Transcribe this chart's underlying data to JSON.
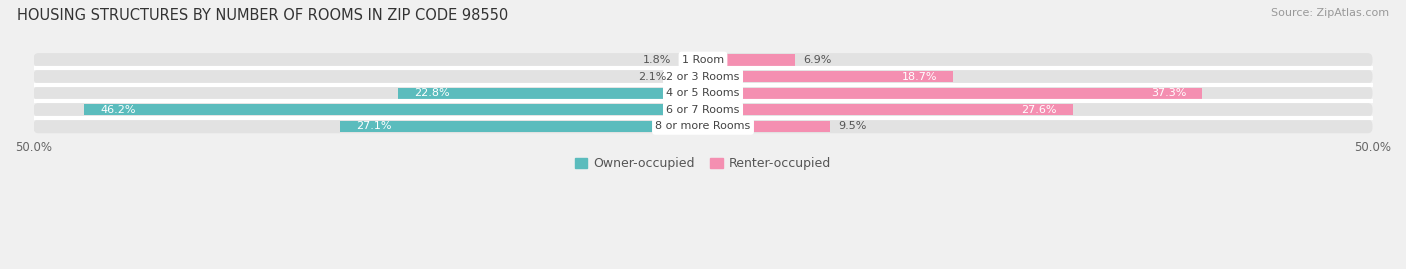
{
  "title": "HOUSING STRUCTURES BY NUMBER OF ROOMS IN ZIP CODE 98550",
  "source": "Source: ZipAtlas.com",
  "categories": [
    "1 Room",
    "2 or 3 Rooms",
    "4 or 5 Rooms",
    "6 or 7 Rooms",
    "8 or more Rooms"
  ],
  "owner_values": [
    1.8,
    2.1,
    22.8,
    46.2,
    27.1
  ],
  "renter_values": [
    6.9,
    18.7,
    37.3,
    27.6,
    9.5
  ],
  "owner_color": "#5bbcbd",
  "renter_color": "#f48fb1",
  "owner_label_threshold": 5,
  "renter_label_threshold": 12,
  "background_color": "#f0f0f0",
  "bar_bg_color": "#e2e2e2",
  "xlim": [
    -50,
    50
  ],
  "title_fontsize": 10.5,
  "source_fontsize": 8,
  "label_fontsize": 8,
  "category_fontsize": 8,
  "legend_fontsize": 9,
  "figsize": [
    14.06,
    2.69
  ],
  "dpi": 100
}
